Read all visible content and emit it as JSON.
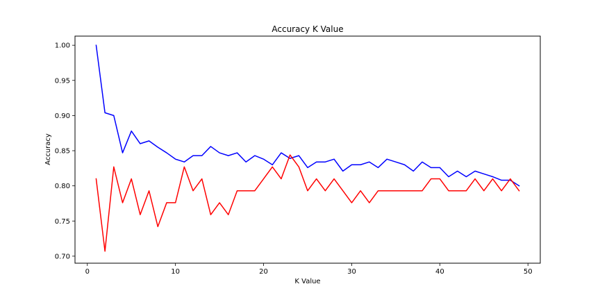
{
  "chart_data": {
    "type": "line",
    "title": "Accuracy K Value",
    "xlabel": "K Value",
    "ylabel": "Accuracy",
    "xlim": [
      -1.4,
      51.4
    ],
    "ylim": [
      0.69,
      1.013
    ],
    "xticks": [
      0,
      10,
      20,
      30,
      40,
      50
    ],
    "yticks": [
      0.7,
      0.75,
      0.8,
      0.85,
      0.9,
      0.95,
      1.0
    ],
    "grid": false,
    "legend": "none",
    "x": [
      1,
      2,
      3,
      4,
      5,
      6,
      7,
      8,
      9,
      10,
      11,
      12,
      13,
      14,
      15,
      16,
      17,
      18,
      19,
      20,
      21,
      22,
      23,
      24,
      25,
      26,
      27,
      28,
      29,
      30,
      31,
      32,
      33,
      34,
      35,
      36,
      37,
      38,
      39,
      40,
      41,
      42,
      43,
      44,
      45,
      46,
      47,
      48,
      49
    ],
    "series": [
      {
        "color": "#0000ff",
        "values": [
          1.0,
          0.904,
          0.9,
          0.847,
          0.878,
          0.86,
          0.864,
          0.855,
          0.847,
          0.838,
          0.834,
          0.843,
          0.843,
          0.856,
          0.847,
          0.843,
          0.847,
          0.834,
          0.843,
          0.838,
          0.83,
          0.847,
          0.839,
          0.843,
          0.826,
          0.834,
          0.834,
          0.838,
          0.821,
          0.83,
          0.83,
          0.834,
          0.826,
          0.838,
          0.834,
          0.83,
          0.821,
          0.834,
          0.826,
          0.826,
          0.813,
          0.821,
          0.813,
          0.821,
          0.817,
          0.813,
          0.808,
          0.808,
          0.8
        ]
      },
      {
        "color": "#ff0000",
        "values": [
          0.81,
          0.707,
          0.827,
          0.776,
          0.81,
          0.759,
          0.793,
          0.742,
          0.776,
          0.776,
          0.827,
          0.793,
          0.81,
          0.759,
          0.776,
          0.759,
          0.793,
          0.793,
          0.793,
          0.81,
          0.827,
          0.81,
          0.844,
          0.827,
          0.793,
          0.81,
          0.793,
          0.81,
          0.793,
          0.776,
          0.793,
          0.776,
          0.793,
          0.793,
          0.793,
          0.793,
          0.793,
          0.793,
          0.81,
          0.81,
          0.793,
          0.793,
          0.793,
          0.81,
          0.793,
          0.81,
          0.793,
          0.81,
          0.793
        ]
      }
    ]
  }
}
